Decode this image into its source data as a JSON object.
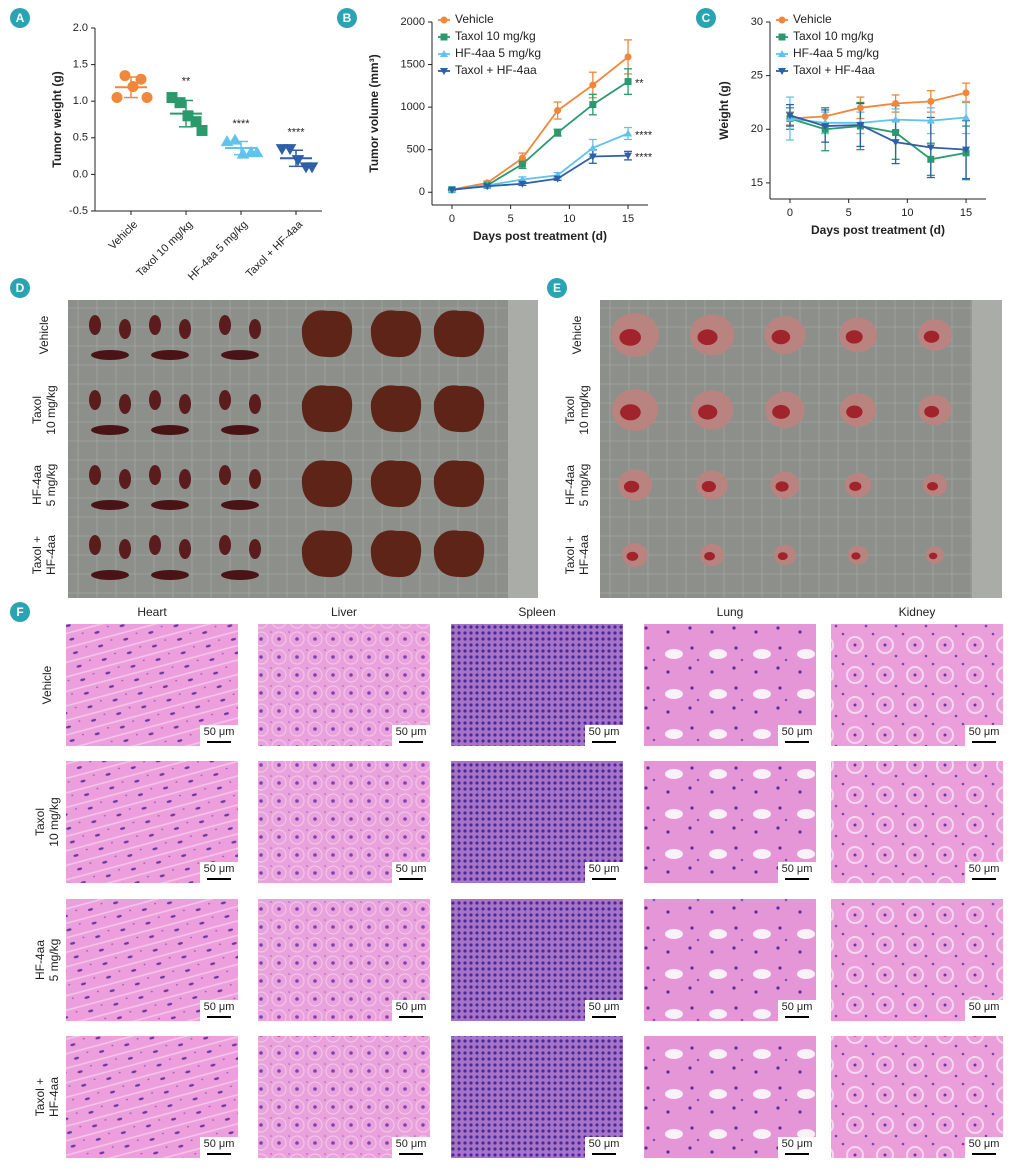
{
  "chart_data": [
    {
      "type": "scatter",
      "panel": "A",
      "ylabel": "Tumor weight (g)",
      "categories": [
        "Vehicle",
        "Taxol 10 mg/kg",
        "HF-4aa 5 mg/kg",
        "Taxol + HF-4aa"
      ],
      "colors": [
        "#f0873a",
        "#2a9a6c",
        "#62c2ec",
        "#2f5fa6"
      ],
      "markers": [
        "circle",
        "square",
        "triangle-up",
        "triangle-down"
      ],
      "points": [
        [
          1.05,
          1.35,
          1.2,
          1.3,
          1.05
        ],
        [
          1.05,
          0.98,
          0.8,
          0.72,
          0.6
        ],
        [
          0.45,
          0.47,
          0.28,
          0.3,
          0.3
        ],
        [
          0.35,
          0.35,
          0.2,
          0.1,
          0.1
        ]
      ],
      "means": [
        1.19,
        0.83,
        0.36,
        0.22
      ],
      "sd": [
        0.14,
        0.18,
        0.09,
        0.11
      ],
      "significance": [
        null,
        "**",
        "****",
        "****"
      ],
      "ylim": [
        -0.5,
        2.0
      ],
      "yticks": [
        -0.5,
        {
          "value": 0,
          "label": "0.0"
        },
        0.5,
        {
          "value": 1,
          "label": "1.0"
        },
        1.5,
        {
          "value": 2,
          "label": "2.0"
        }
      ]
    },
    {
      "type": "line",
      "panel": "B",
      "xlabel": "Days post treatment (d)",
      "ylabel": "Tumor volume (mm³)",
      "x": [
        0,
        3,
        6,
        9,
        12,
        15
      ],
      "xlim": [
        -1.7,
        16.7
      ],
      "xticks": [
        0,
        5,
        10,
        15
      ],
      "ylim": [
        -150,
        2000
      ],
      "yticks": [
        0,
        500,
        1000,
        1500,
        2000
      ],
      "legend": "upper left",
      "series": [
        {
          "name": "Vehicle",
          "color": "#f0873a",
          "marker": "circle",
          "values": [
            30,
            110,
            400,
            960,
            1260,
            1590
          ],
          "errors": [
            10,
            20,
            60,
            100,
            150,
            200
          ]
        },
        {
          "name": "Taxol 10 mg/kg",
          "color": "#2a9a6c",
          "marker": "square",
          "values": [
            30,
            80,
            330,
            700,
            1030,
            1300
          ],
          "errors": [
            10,
            15,
            50,
            40,
            120,
            150
          ],
          "significance": "**"
        },
        {
          "name": "HF-4aa 5 mg/kg",
          "color": "#62c2ec",
          "marker": "triangle-up",
          "values": [
            30,
            80,
            150,
            200,
            520,
            690
          ],
          "errors": [
            5,
            10,
            30,
            30,
            100,
            70
          ],
          "significance": "****"
        },
        {
          "name": "Taxol + HF-4aa",
          "color": "#2f5fa6",
          "marker": "triangle-down",
          "values": [
            30,
            70,
            100,
            160,
            420,
            430
          ],
          "errors": [
            5,
            10,
            20,
            20,
            80,
            50
          ],
          "significance": "****"
        }
      ]
    },
    {
      "type": "line",
      "panel": "C",
      "xlabel": "Days post treatment (d)",
      "ylabel": "Weight (g)",
      "x": [
        0,
        3,
        6,
        9,
        12,
        15
      ],
      "xlim": [
        -1.7,
        16.7
      ],
      "xticks": [
        0,
        5,
        10,
        15
      ],
      "ylim": [
        13.5,
        30
      ],
      "yticks": [
        15,
        20,
        25,
        30
      ],
      "legend": "upper left",
      "series": [
        {
          "name": "Vehicle",
          "color": "#f0873a",
          "marker": "circle",
          "values": [
            21,
            21.2,
            22,
            22.4,
            22.6,
            23.4
          ],
          "errors": [
            0.6,
            0.8,
            1,
            0.8,
            1,
            0.9
          ]
        },
        {
          "name": "Taxol 10 mg/kg",
          "color": "#2a9a6c",
          "marker": "square",
          "values": [
            21,
            20,
            20.3,
            19.7,
            17.2,
            17.8
          ],
          "errors": [
            1,
            2,
            2.2,
            2.5,
            1.5,
            2.5
          ]
        },
        {
          "name": "HF-4aa 5 mg/kg",
          "color": "#62c2ec",
          "marker": "triangle-up",
          "values": [
            21,
            20.6,
            20.6,
            20.9,
            20.8,
            21.1
          ],
          "errors": [
            2,
            1,
            1,
            1,
            1.2,
            1.5
          ]
        },
        {
          "name": "Taxol + HF-4aa",
          "color": "#2f5fa6",
          "marker": "triangle-down",
          "values": [
            21.3,
            20.3,
            20.4,
            18.8,
            18.3,
            18.1
          ],
          "errors": [
            1,
            1.5,
            2,
            2,
            2.8,
            2.7
          ]
        }
      ]
    }
  ],
  "row_labels": [
    [
      "Vehicle"
    ],
    [
      "Taxol",
      "10 mg/kg"
    ],
    [
      "HF-4aa",
      "5 mg/kg"
    ],
    [
      "Taxol +",
      "HF-4aa"
    ]
  ],
  "photos": [
    {
      "panel": "D"
    },
    {
      "panel": "E"
    }
  ],
  "histology": {
    "panel": "F",
    "columns": [
      "Heart",
      "Liver",
      "Spleen",
      "Lung",
      "Kidney"
    ],
    "scale_bar": "50 μm"
  }
}
